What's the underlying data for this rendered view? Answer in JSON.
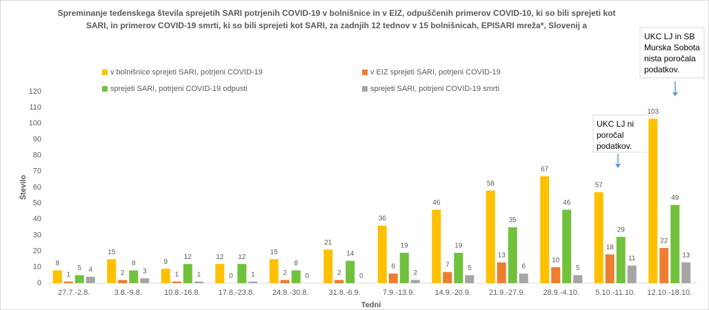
{
  "chart_data": {
    "type": "bar",
    "title": [
      "Spreminanje tedenskega števila sprejetih SARI potrjenih COVID-19 v bolnišnice in v EIZ, odpuščenih primerov COVID-10, ki so bili sprejeti kot",
      "SARI, in primerov COVID-19 smrti, ki so bili sprejeti kot SARI, za zadnjih 12 tednov  v 15 bolnišnicah, EPISARI mreža*, Slovenij a"
    ],
    "x_label": "Tedni",
    "y_label": "Število",
    "categories": [
      "27.7.-2.8.",
      "3.8.-9.8.",
      "10.8.-16.8.",
      "17.8.-23.8.",
      "24.8.-30.8.",
      "31.8.-6.9.",
      "7.9.-13.9.",
      "14.9.-20.9.",
      "21.9.-27.9.",
      "28.9.-4.10.",
      "5.10.-11.10.",
      "12.10.-18.10."
    ],
    "series": [
      {
        "name": "v bolnišnice sprejeti SARI, potrjeni COVID-19",
        "color": "#ffc000",
        "values": [
          8,
          15,
          9,
          12,
          15,
          21,
          36,
          46,
          58,
          67,
          57,
          103
        ]
      },
      {
        "name": "v EIZ sprejeti SARI, potrjeni COVID-19",
        "color": "#ed7d31",
        "values": [
          1,
          2,
          1,
          0,
          2,
          2,
          6,
          7,
          13,
          10,
          18,
          22
        ]
      },
      {
        "name": "sprejeti SARI, potrjeni COVID-19 odpusti",
        "color": "#70c13c",
        "values": [
          5,
          8,
          12,
          12,
          8,
          14,
          19,
          19,
          35,
          46,
          29,
          49
        ]
      },
      {
        "name": "sprejeti SARI, potrjeni COVID-19 smrti",
        "color": "#a5a5a5",
        "values": [
          4,
          3,
          1,
          1,
          0,
          0,
          2,
          5,
          6,
          5,
          11,
          13
        ]
      }
    ],
    "ylim": [
      0,
      120
    ],
    "yticks": [
      0,
      10,
      20,
      30,
      40,
      50,
      60,
      70,
      80,
      90,
      100,
      110,
      120
    ],
    "grid": false,
    "annotations": [
      {
        "lines": [
          "UKC LJ ni",
          "poročal",
          "podatkov."
        ]
      },
      {
        "lines": [
          "UKC LJ in SB",
          "Murska Sobota",
          "nista poročala",
          "podatkov."
        ]
      }
    ]
  }
}
